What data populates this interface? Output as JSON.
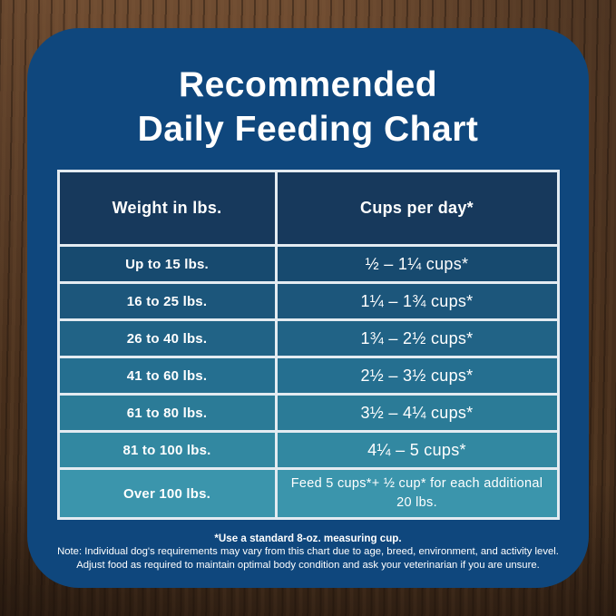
{
  "title": {
    "line1": "Recommended",
    "line2": "Daily Feeding Chart"
  },
  "table": {
    "headers": [
      "Weight in lbs.",
      "Cups per day*"
    ],
    "rows": [
      {
        "weight": "Up to 15 lbs.",
        "cups": "½ – 1¼ cups*"
      },
      {
        "weight": "16 to 25 lbs.",
        "cups": "1¼ – 1¾ cups*"
      },
      {
        "weight": "26 to 40 lbs.",
        "cups": "1¾ – 2½ cups*"
      },
      {
        "weight": "41 to 60 lbs.",
        "cups": "2½ – 3½ cups*"
      },
      {
        "weight": "61 to 80 lbs.",
        "cups": "3½ – 4¼ cups*"
      },
      {
        "weight": "81 to 100 lbs.",
        "cups": "4¼ – 5 cups*"
      },
      {
        "weight": "Over 100 lbs.",
        "cups": "Feed 5 cups*+ ½ cup* for each additional 20 lbs."
      }
    ]
  },
  "footnotes": {
    "cup": "*Use a standard 8-oz. measuring cup.",
    "note_line1": "Note: Individual dog's requirements may vary from this chart due to age, breed, environment, and activity level.",
    "note_line2": "Adjust food as required to maintain optimal body condition and ask your veterinarian if you are unsure."
  },
  "colors": {
    "card_background": "#0f477d",
    "header_background": "#17395c",
    "table_border": "#e3ebf1",
    "title_text": "#ffffff",
    "wood_brown": "#583a25",
    "rows": [
      "#174a6f",
      "#1c567b",
      "#216386",
      "#256f90",
      "#2b7b97",
      "#3288a1",
      "#3b95ac"
    ]
  },
  "chart_data": {
    "type": "table",
    "title": "Recommended Daily Feeding Chart",
    "columns": [
      "Weight in lbs.",
      "Cups per day*"
    ],
    "rows": [
      {
        "weight_label": "Up to 15 lbs.",
        "cups_label": "½ – 1¼ cups*",
        "weight_min_lbs": 0,
        "weight_max_lbs": 15,
        "cups_min": 0.5,
        "cups_max": 1.25
      },
      {
        "weight_label": "16 to 25 lbs.",
        "cups_label": "1¼ – 1¾ cups*",
        "weight_min_lbs": 16,
        "weight_max_lbs": 25,
        "cups_min": 1.25,
        "cups_max": 1.75
      },
      {
        "weight_label": "26 to 40 lbs.",
        "cups_label": "1¾ – 2½ cups*",
        "weight_min_lbs": 26,
        "weight_max_lbs": 40,
        "cups_min": 1.75,
        "cups_max": 2.5
      },
      {
        "weight_label": "41 to 60 lbs.",
        "cups_label": "2½ – 3½ cups*",
        "weight_min_lbs": 41,
        "weight_max_lbs": 60,
        "cups_min": 2.5,
        "cups_max": 3.5
      },
      {
        "weight_label": "61 to 80 lbs.",
        "cups_label": "3½ – 4¼ cups*",
        "weight_min_lbs": 61,
        "weight_max_lbs": 80,
        "cups_min": 3.5,
        "cups_max": 4.25
      },
      {
        "weight_label": "81 to 100 lbs.",
        "cups_label": "4¼ – 5 cups*",
        "weight_min_lbs": 81,
        "weight_max_lbs": 100,
        "cups_min": 4.25,
        "cups_max": 5
      },
      {
        "weight_label": "Over 100 lbs.",
        "cups_label": "Feed 5 cups*+ ½ cup* for each additional 20 lbs.",
        "weight_min_lbs": 100,
        "rule": "5 cups plus 0.5 cup per additional 20 lbs"
      }
    ],
    "footnotes": [
      "*Use a standard 8-oz. measuring cup.",
      "Note: Individual dog's requirements may vary from this chart due to age, breed, environment, and activity level.",
      "Adjust food as required to maintain optimal body condition and ask your veterinarian if you are unsure."
    ]
  }
}
